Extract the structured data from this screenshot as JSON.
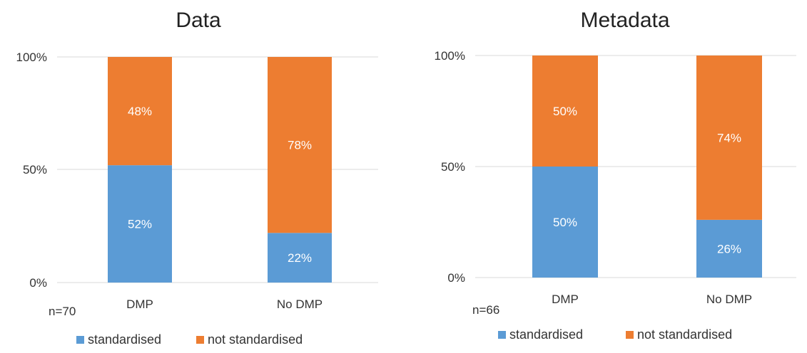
{
  "colors": {
    "standardised": "#5b9bd5",
    "not_standardised": "#ed7d31",
    "grid": "#d9d9d9"
  },
  "chart_data": [
    {
      "type": "bar",
      "stacked": true,
      "title": "Data",
      "note": "n=70",
      "categories": [
        "DMP",
        "No DMP"
      ],
      "yticks": [
        "0%",
        "50%",
        "100%"
      ],
      "ylim": [
        0,
        100
      ],
      "grid": true,
      "legend": "bottom",
      "series": [
        {
          "name": "standardised",
          "values": [
            52,
            22
          ],
          "labels": [
            "52%",
            "22%"
          ]
        },
        {
          "name": "not standardised",
          "values": [
            48,
            78
          ],
          "labels": [
            "48%",
            "78%"
          ]
        }
      ]
    },
    {
      "type": "bar",
      "stacked": true,
      "title": "Metadata",
      "note": "n=66",
      "categories": [
        "DMP",
        "No DMP"
      ],
      "yticks": [
        "0%",
        "50%",
        "100%"
      ],
      "ylim": [
        0,
        100
      ],
      "grid": true,
      "legend": "bottom",
      "series": [
        {
          "name": "standardised",
          "values": [
            50,
            26
          ],
          "labels": [
            "50%",
            "26%"
          ]
        },
        {
          "name": "not standardised",
          "values": [
            50,
            74
          ],
          "labels": [
            "50%",
            "74%"
          ]
        }
      ]
    }
  ]
}
